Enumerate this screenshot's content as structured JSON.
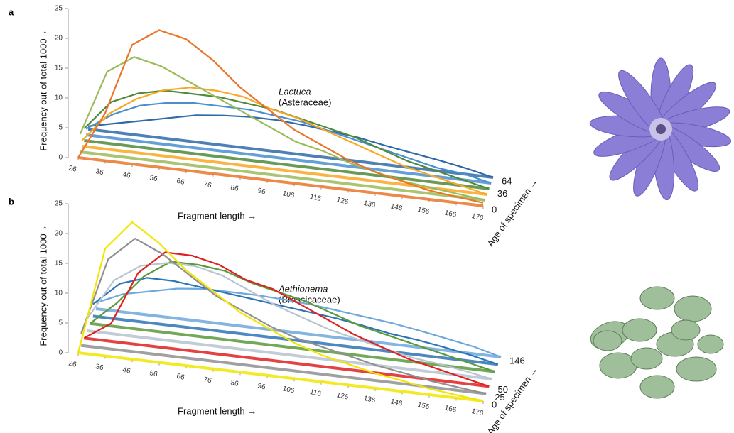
{
  "chart_data": [
    {
      "type": "line",
      "panel": "a",
      "genus": "Lactuca",
      "family": "(Asteraceae)",
      "x_label": "Fragment length →",
      "y_label": "Frequency out of total 1000→",
      "z_label": "Age of specimen →",
      "x": [
        26,
        36,
        46,
        56,
        66,
        76,
        86,
        96,
        106,
        116,
        126,
        136,
        146,
        156,
        166,
        176
      ],
      "xlim": [
        26,
        176
      ],
      "xticks": [
        26,
        36,
        46,
        56,
        66,
        76,
        86,
        96,
        106,
        116,
        126,
        136,
        146,
        156,
        166,
        176
      ],
      "ylim": [
        0,
        25
      ],
      "yticks": [
        0,
        5,
        10,
        15,
        20,
        25
      ],
      "zlim": [
        0,
        64
      ],
      "zticks": [
        0,
        36,
        64
      ],
      "series": [
        {
          "color": "#2e6aa8",
          "values": [
            0.5,
            1.5,
            2.5,
            3.5,
            4.5,
            5,
            5.3,
            5.3,
            5,
            4.5,
            4,
            3.2,
            2.5,
            1.8,
            1,
            0
          ]
        },
        {
          "color": "#4a90d0",
          "values": [
            1,
            4,
            6,
            7,
            7.5,
            7.5,
            7.5,
            7,
            6.5,
            5.5,
            4.5,
            3.5,
            2.5,
            1.5,
            1,
            0
          ]
        },
        {
          "color": "#4f8a3a",
          "values": [
            2,
            7,
            9,
            10,
            10,
            10,
            9.5,
            9,
            8,
            7,
            6,
            4.5,
            3,
            2,
            1,
            0
          ]
        },
        {
          "color": "#f9a825",
          "values": [
            1,
            6,
            9,
            11,
            12,
            12,
            11.5,
            10,
            9,
            7.5,
            6,
            4.5,
            3,
            2,
            1,
            0
          ]
        },
        {
          "color": "#9bbb59",
          "values": [
            3,
            14,
            17,
            16,
            14,
            12,
            10,
            8,
            6,
            5,
            3.5,
            2.5,
            1.5,
            1,
            0.5,
            0
          ]
        },
        {
          "color": "#e9762b",
          "values": [
            0,
            8,
            20,
            23,
            22,
            19,
            15,
            12,
            9,
            7,
            5,
            3.5,
            2.5,
            1.5,
            1,
            0.5
          ]
        }
      ]
    },
    {
      "type": "line",
      "panel": "b",
      "genus": "Aethionema",
      "family": "(Brassicaceae)",
      "x_label": "Fragment length →",
      "y_label": "Frequency out of total 1000→",
      "z_label": "Age of specimen →",
      "x": [
        26,
        36,
        46,
        56,
        66,
        76,
        86,
        96,
        106,
        116,
        126,
        136,
        146,
        156,
        166,
        176
      ],
      "xlim": [
        26,
        176
      ],
      "xticks": [
        26,
        36,
        46,
        56,
        66,
        76,
        86,
        96,
        106,
        116,
        126,
        136,
        146,
        156,
        166,
        176
      ],
      "ylim": [
        0,
        25
      ],
      "yticks": [
        0,
        5,
        10,
        15,
        20,
        25
      ],
      "zlim": [
        0,
        146
      ],
      "zticks": [
        0,
        25,
        50,
        146
      ],
      "series": [
        {
          "color": "#6fa8dc",
          "values": [
            1,
            3,
            4,
            5,
            5.5,
            5.5,
            5.5,
            5.3,
            5,
            4.5,
            4,
            3.5,
            2.8,
            2,
            1.2,
            0
          ]
        },
        {
          "color": "#2e75b6",
          "values": [
            2,
            6,
            7.5,
            7.5,
            7,
            6.5,
            6,
            5.5,
            5,
            4.5,
            3.8,
            3,
            2.5,
            1.8,
            1,
            0
          ]
        },
        {
          "color": "#5a9a3a",
          "values": [
            0,
            4,
            9,
            12,
            12,
            11.5,
            10,
            9,
            8,
            6.5,
            5,
            4,
            3,
            2,
            1,
            0
          ]
        },
        {
          "color": "#b8c4d0",
          "values": [
            2,
            9,
            12,
            13,
            13,
            12,
            10,
            8,
            6.5,
            5,
            4,
            3,
            2,
            1.5,
            0.8,
            0
          ]
        },
        {
          "color": "#e02020",
          "values": [
            0,
            3,
            12,
            16,
            16,
            15,
            13,
            12,
            10,
            8,
            6,
            4.5,
            3,
            2,
            1,
            0
          ]
        },
        {
          "color": "#909090",
          "values": [
            2,
            15,
            19,
            17,
            14,
            11,
            9,
            7,
            5.5,
            4.5,
            3.5,
            2.5,
            1.8,
            1,
            0.5,
            0
          ]
        },
        {
          "color": "#f2e600",
          "values": [
            0,
            18,
            23,
            20,
            16,
            13,
            10,
            8,
            6,
            4.5,
            3.5,
            2.5,
            1.8,
            1,
            0.5,
            0
          ]
        }
      ]
    }
  ]
}
